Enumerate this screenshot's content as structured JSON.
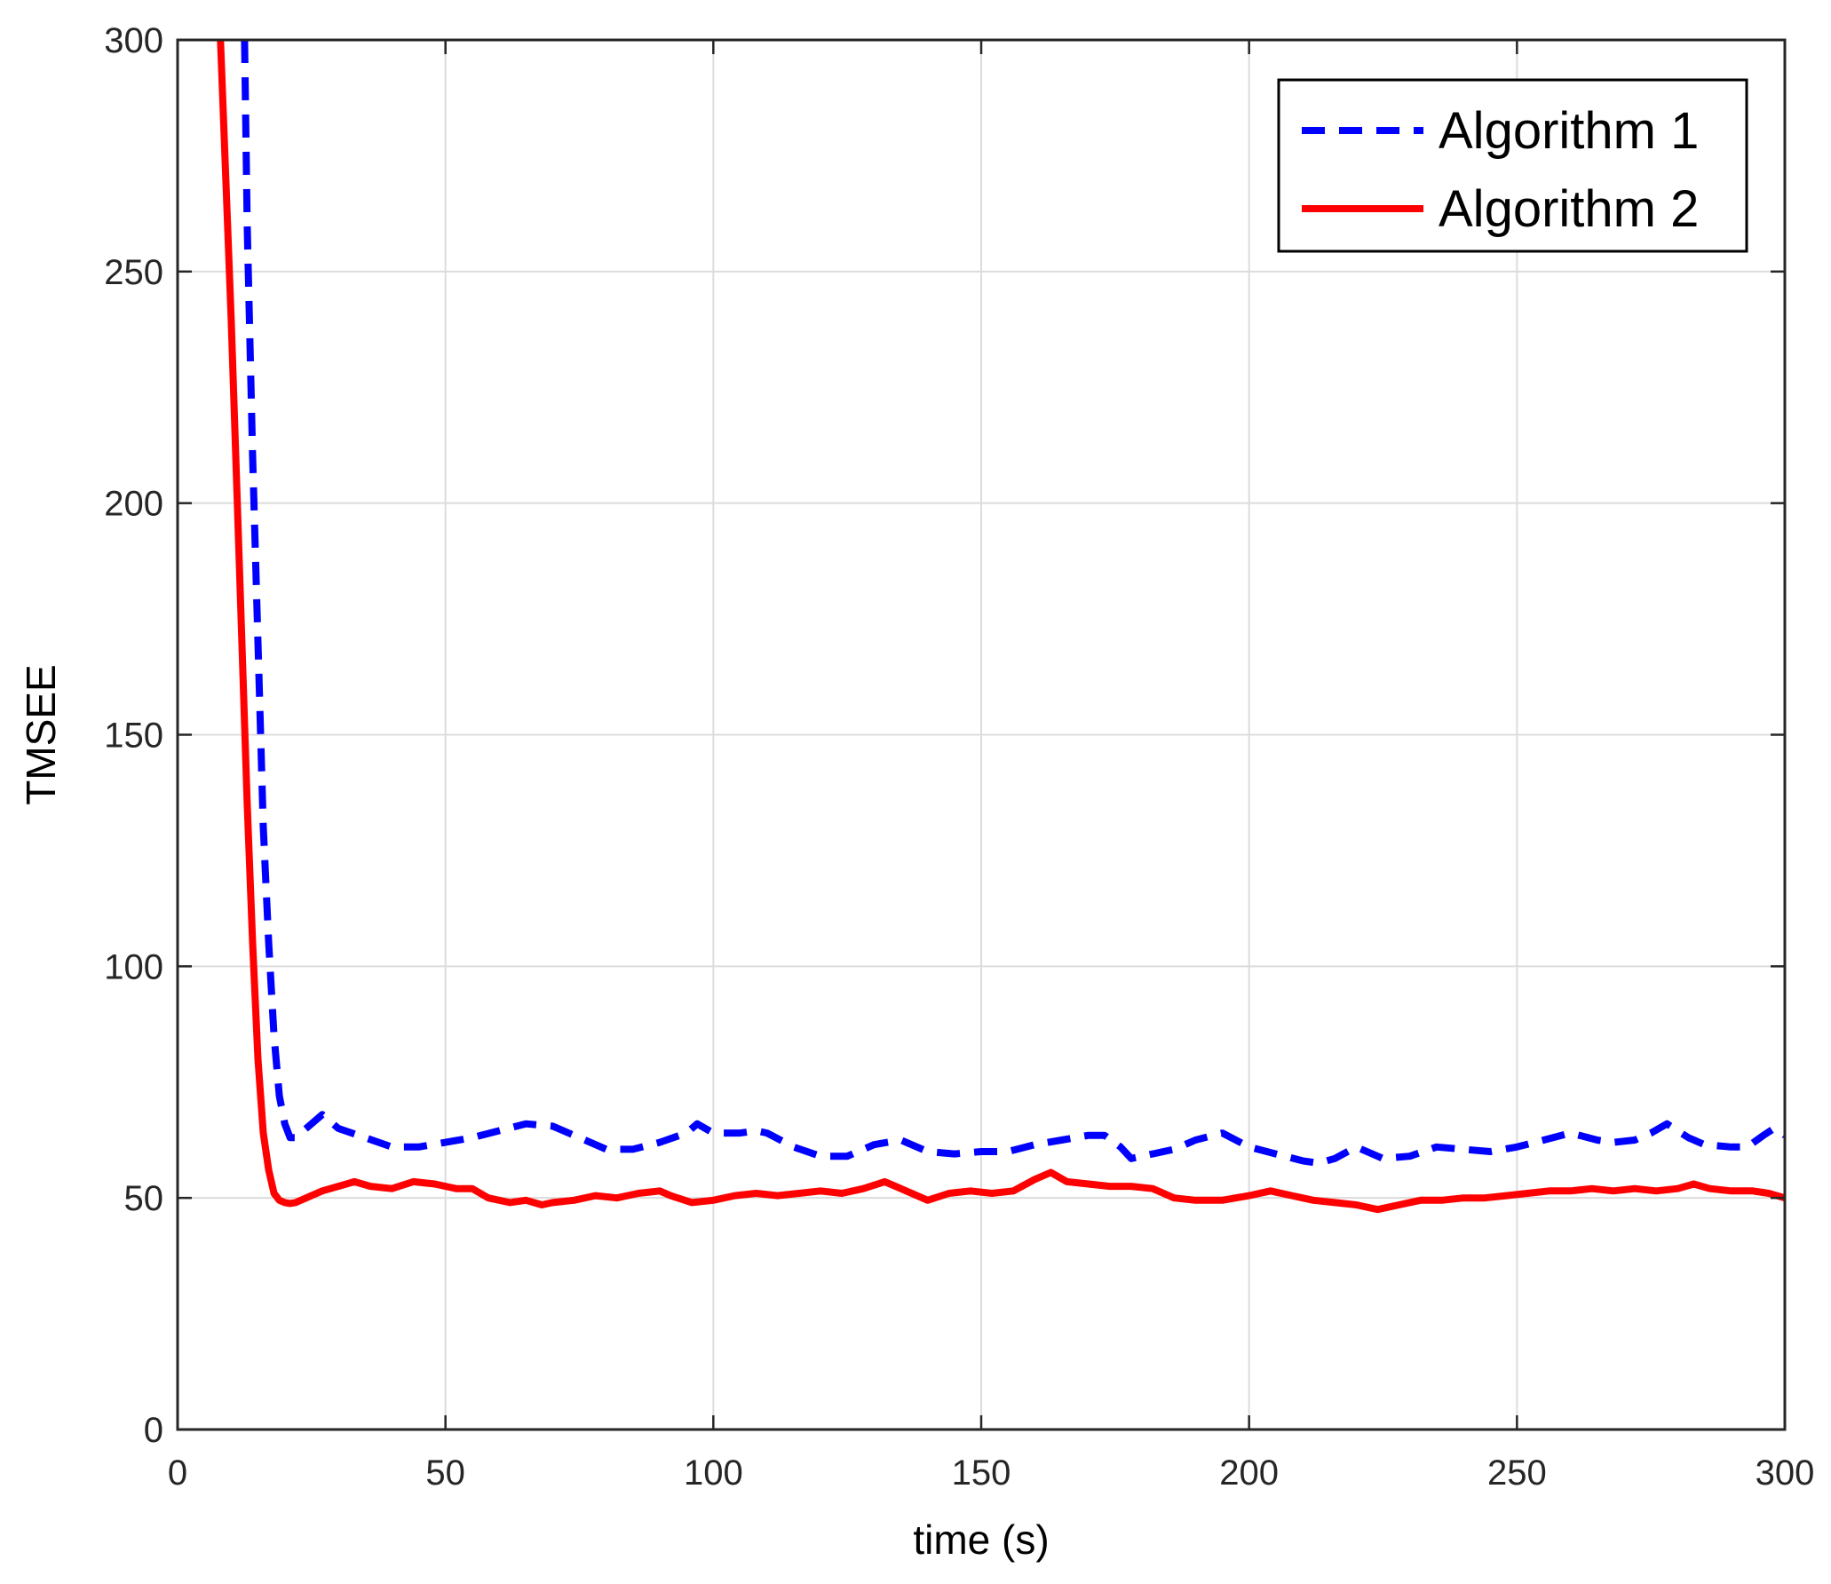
{
  "chart_data": {
    "type": "line",
    "title": "",
    "xlabel": "time (s)",
    "ylabel": "TMSEE",
    "xlim": [
      0,
      300
    ],
    "ylim": [
      0,
      300
    ],
    "xticks": [
      0,
      50,
      100,
      150,
      200,
      250,
      300
    ],
    "yticks": [
      0,
      50,
      100,
      150,
      200,
      250,
      300
    ],
    "grid": true,
    "legend_location": "top-right",
    "series": [
      {
        "name": "Algorithm 1",
        "color": "#0000ff",
        "line_style": "dashed",
        "x": [
          12.5,
          13,
          14,
          15,
          16,
          17,
          18,
          19,
          20,
          21,
          22,
          24,
          27,
          30,
          35,
          40,
          45,
          50,
          55,
          60,
          65,
          70,
          75,
          80,
          85,
          90,
          95,
          97,
          100,
          105,
          108,
          110,
          115,
          120,
          125,
          130,
          135,
          140,
          145,
          150,
          155,
          160,
          165,
          170,
          173,
          176,
          178,
          182,
          186,
          190,
          195,
          200,
          205,
          210,
          213,
          216,
          220,
          222,
          225,
          230,
          235,
          240,
          245,
          250,
          255,
          260,
          265,
          268,
          272,
          275,
          278,
          282,
          285,
          290,
          293,
          296,
          298,
          300
        ],
        "y": [
          300,
          260,
          210,
          170,
          130,
          105,
          85,
          72,
          66,
          63,
          63,
          65,
          68,
          65,
          63,
          61,
          61,
          62,
          63,
          64.5,
          66,
          65.5,
          63,
          60.5,
          60.5,
          62,
          64,
          66,
          64,
          64,
          64.5,
          64,
          61,
          59,
          59,
          61.5,
          62.5,
          60,
          59.5,
          60,
          60,
          61.5,
          62.5,
          63.5,
          63.5,
          61,
          58.5,
          59.5,
          60.5,
          62.5,
          64,
          61,
          59.5,
          58,
          57.5,
          58.5,
          61,
          60,
          58.5,
          59,
          61,
          60.5,
          60,
          61,
          62.5,
          64,
          62.5,
          62,
          62.5,
          64,
          66,
          63,
          61.5,
          61,
          61,
          63.5,
          65,
          63.5
        ]
      },
      {
        "name": "Algorithm 2",
        "color": "#ff0000",
        "line_style": "solid",
        "x": [
          8,
          9,
          10,
          11,
          12,
          13,
          14,
          15,
          16,
          17,
          18,
          19,
          20,
          21,
          22,
          23,
          25,
          27,
          30,
          33,
          36,
          40,
          44,
          48,
          52,
          55,
          58,
          62,
          65,
          68,
          70,
          74,
          78,
          82,
          86,
          90,
          92,
          96,
          100,
          104,
          108,
          112,
          116,
          120,
          124,
          128,
          132,
          136,
          140,
          144,
          148,
          152,
          156,
          160,
          163,
          166,
          170,
          174,
          178,
          182,
          186,
          190,
          195,
          200,
          204,
          208,
          212,
          216,
          220,
          224,
          228,
          232,
          236,
          240,
          244,
          248,
          252,
          256,
          260,
          264,
          268,
          272,
          276,
          280,
          283,
          286,
          290,
          294,
          297,
          300
        ],
        "y": [
          300,
          270,
          240,
          205,
          170,
          135,
          105,
          80,
          64,
          56,
          51,
          49.5,
          49,
          48.8,
          49,
          49.5,
          50.5,
          51.5,
          52.5,
          53.5,
          52.5,
          52,
          53.5,
          53,
          52,
          52,
          50,
          49,
          49.5,
          48.5,
          49,
          49.5,
          50.5,
          50,
          51,
          51.5,
          50.5,
          49,
          49.5,
          50.5,
          51,
          50.5,
          51,
          51.5,
          51,
          52,
          53.5,
          51.5,
          49.5,
          51,
          51.5,
          51,
          51.5,
          54,
          55.5,
          53.5,
          53,
          52.5,
          52.5,
          52,
          50,
          49.5,
          49.5,
          50.5,
          51.5,
          50.5,
          49.5,
          49,
          48.5,
          47.5,
          48.5,
          49.5,
          49.5,
          50,
          50,
          50.5,
          51,
          51.5,
          51.5,
          52,
          51.5,
          52,
          51.5,
          52,
          53,
          52,
          51.5,
          51.5,
          51,
          50
        ]
      }
    ]
  }
}
